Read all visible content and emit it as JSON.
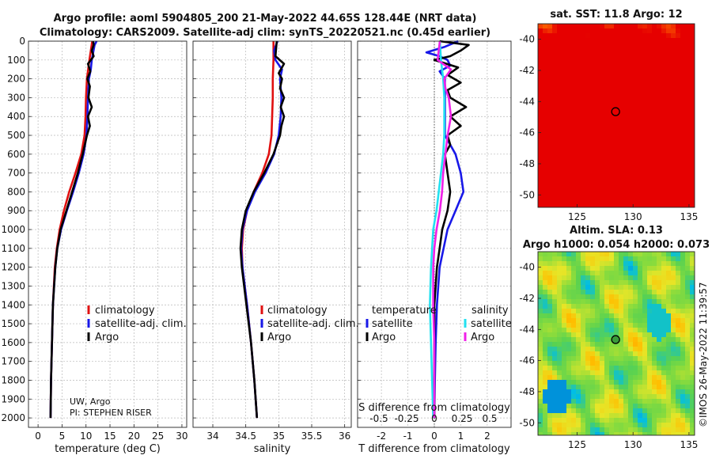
{
  "header": {
    "line1": "Argo profile: aoml 5904805_200 21-May-2022 44.65S 128.44E (NRT data)",
    "line2": "Climatology: CARS2009. Satellite-adj clim: synTS_20220521.nc (0.45d earlier)"
  },
  "colors": {
    "climatology": "#e01010",
    "satellite": "#1818e8",
    "argo": "#000000",
    "sal_sat": "#22e0f0",
    "sal_diff": "#f020e8"
  },
  "chart_data": [
    {
      "type": "line",
      "name": "temperature-profile",
      "xlabel": "temperature (deg C)",
      "ylabel": "depth",
      "xlim": [
        -2,
        31
      ],
      "ylim": [
        2050,
        0
      ],
      "xticks": [
        0,
        5,
        10,
        15,
        20,
        25,
        30
      ],
      "xtick_labels": [
        "0",
        "5",
        "10",
        "15",
        "20",
        "25",
        "30"
      ],
      "yticks": [
        0,
        100,
        200,
        300,
        400,
        500,
        600,
        700,
        800,
        900,
        1000,
        1100,
        1200,
        1300,
        1400,
        1500,
        1600,
        1700,
        1800,
        1900,
        2000
      ],
      "ytick_labels": [
        "0",
        "100",
        "200",
        "300",
        "400",
        "500",
        "600",
        "700",
        "800",
        "900",
        "1000",
        "1100",
        "1200",
        "1300",
        "1400",
        "1500",
        "1600",
        "1700",
        "1800",
        "1900",
        "2000"
      ],
      "legend": [
        "climatology",
        "satellite-adj. clim.",
        "Argo"
      ],
      "note": [
        "UW, Argo",
        "PI: STEPHEN RISER"
      ],
      "series": [
        {
          "name": "climatology",
          "depth": [
            0,
            50,
            100,
            200,
            300,
            400,
            500,
            600,
            700,
            800,
            900,
            1000,
            1100,
            1200,
            1400,
            1600,
            1800,
            2000
          ],
          "values": [
            11.3,
            11.0,
            10.7,
            10.2,
            10.0,
            9.9,
            9.7,
            9.0,
            7.8,
            6.5,
            5.4,
            4.5,
            3.9,
            3.5,
            3.1,
            2.9,
            2.7,
            2.6
          ]
        },
        {
          "name": "satellite-adj. clim.",
          "depth": [
            0,
            20,
            60,
            100,
            150,
            200,
            300,
            400,
            500,
            600,
            700,
            800,
            900,
            1000,
            1100,
            1200,
            1400,
            1600,
            1800,
            2000
          ],
          "values": [
            12.2,
            11.8,
            11.5,
            11.2,
            11.0,
            10.6,
            10.4,
            10.3,
            10.1,
            9.5,
            8.5,
            7.3,
            6.0,
            4.8,
            4.0,
            3.6,
            3.1,
            2.9,
            2.7,
            2.6
          ]
        },
        {
          "name": "Argo",
          "depth": [
            0,
            20,
            50,
            80,
            120,
            160,
            200,
            240,
            300,
            350,
            400,
            450,
            500,
            600,
            700,
            800,
            900,
            1000,
            1100,
            1200,
            1400,
            1600,
            1800,
            2000
          ],
          "values": [
            11.5,
            11.6,
            11.2,
            11.6,
            10.4,
            10.9,
            10.3,
            10.8,
            10.5,
            11.2,
            10.4,
            10.8,
            10.2,
            9.3,
            8.3,
            7.1,
            5.9,
            4.7,
            4.0,
            3.6,
            3.1,
            2.9,
            2.7,
            2.6
          ]
        }
      ]
    },
    {
      "type": "line",
      "name": "salinity-profile",
      "xlabel": "salinity",
      "xlim": [
        33.7,
        36.1
      ],
      "ylim": [
        2050,
        0
      ],
      "xticks": [
        34,
        34.5,
        35,
        35.5,
        36
      ],
      "xtick_labels": [
        "34",
        "34.5",
        "35",
        "35.5",
        "36"
      ],
      "legend": [
        "climatology",
        "satellite-adj. clim.",
        "Argo"
      ],
      "series": [
        {
          "name": "climatology",
          "depth": [
            0,
            100,
            200,
            300,
            400,
            500,
            600,
            700,
            800,
            900,
            1000,
            1100,
            1200,
            1400,
            1600,
            1800,
            2000
          ],
          "values": [
            34.92,
            34.92,
            34.91,
            34.91,
            34.9,
            34.89,
            34.85,
            34.75,
            34.62,
            34.52,
            34.46,
            34.44,
            34.45,
            34.52,
            34.58,
            34.63,
            34.67
          ]
        },
        {
          "name": "satellite-adj. clim.",
          "depth": [
            0,
            50,
            100,
            150,
            200,
            300,
            400,
            500,
            600,
            700,
            800,
            900,
            1000,
            1100,
            1200,
            1400,
            1600,
            1800,
            2000
          ],
          "values": [
            34.98,
            34.93,
            34.95,
            35.05,
            35.02,
            35.04,
            35.03,
            35.0,
            34.93,
            34.8,
            34.64,
            34.52,
            34.45,
            34.43,
            34.45,
            34.52,
            34.58,
            34.63,
            34.67
          ]
        },
        {
          "name": "Argo",
          "depth": [
            0,
            40,
            80,
            120,
            170,
            200,
            250,
            300,
            350,
            400,
            450,
            500,
            600,
            700,
            800,
            900,
            1000,
            1100,
            1200,
            1400,
            1600,
            1800,
            2000
          ],
          "values": [
            34.97,
            34.96,
            34.95,
            35.08,
            35.0,
            35.05,
            35.02,
            35.08,
            35.03,
            35.08,
            35.04,
            35.02,
            34.92,
            34.78,
            34.62,
            34.5,
            34.44,
            34.42,
            34.44,
            34.51,
            34.58,
            34.63,
            34.67
          ]
        }
      ]
    },
    {
      "type": "line",
      "name": "difference-profile",
      "xlabel": "T difference from climatology",
      "xlabel_top": "S difference from climatology",
      "xlim": [
        -2.9,
        2.9
      ],
      "ylim": [
        2050,
        0
      ],
      "xticks": [
        -2,
        -1,
        0,
        1,
        2
      ],
      "xtick_labels": [
        "-2",
        "-1",
        "0",
        "1",
        "2"
      ],
      "top_ticks": [
        -0.5,
        -0.25,
        0,
        0.25,
        0.5
      ],
      "top_tick_labels": [
        "-0.5",
        "-0.25",
        "0",
        "0.25",
        "0.5"
      ],
      "legend_temperature": {
        "title": "temperature",
        "items": [
          "satellite",
          "Argo"
        ]
      },
      "legend_salinity": {
        "title": "salinity",
        "items": [
          "satellite",
          "Argo"
        ]
      },
      "series": [
        {
          "name": "T satellite",
          "depth": [
            0,
            30,
            60,
            80,
            100,
            130,
            160,
            200,
            300,
            400,
            500,
            600,
            700,
            800,
            900,
            1000,
            1100,
            1200,
            1400,
            1600,
            1800,
            2000
          ],
          "values": [
            0.9,
            0.4,
            -0.3,
            0.2,
            0.5,
            0.6,
            0.2,
            0.4,
            0.4,
            0.4,
            0.4,
            0.8,
            1.0,
            1.1,
            0.8,
            0.5,
            0.35,
            0.2,
            0.1,
            0.05,
            0.02,
            0.0
          ]
        },
        {
          "name": "T Argo",
          "depth": [
            0,
            20,
            50,
            80,
            100,
            140,
            180,
            220,
            260,
            300,
            350,
            400,
            450,
            500,
            550,
            600,
            700,
            800,
            900,
            1000,
            1100,
            1200,
            1400,
            1600,
            1800,
            2000
          ],
          "values": [
            0.2,
            1.3,
            1.0,
            0.6,
            0.0,
            0.9,
            0.5,
            1.0,
            0.5,
            0.6,
            1.2,
            0.6,
            1.0,
            0.5,
            0.6,
            0.4,
            0.5,
            0.6,
            0.5,
            0.3,
            0.2,
            0.1,
            0.0,
            0.0,
            0.0,
            0.0
          ]
        },
        {
          "name": "S satellite",
          "depth": [
            0,
            100,
            200,
            300,
            400,
            500,
            600,
            700,
            800,
            900,
            1000,
            1100,
            1200,
            1400,
            1600,
            1800,
            2000
          ],
          "values": [
            0.05,
            0.06,
            0.08,
            0.09,
            0.09,
            0.09,
            0.08,
            0.06,
            0.04,
            0.02,
            -0.01,
            -0.02,
            -0.03,
            -0.04,
            -0.03,
            -0.02,
            -0.01
          ]
        },
        {
          "name": "S Argo",
          "depth": [
            0,
            50,
            100,
            150,
            200,
            250,
            300,
            400,
            500,
            600,
            700,
            800,
            900,
            1000,
            1100,
            1200,
            1400,
            1600,
            1800,
            2000
          ],
          "values": [
            0.05,
            0.04,
            0.03,
            0.15,
            0.09,
            0.1,
            0.13,
            0.15,
            0.12,
            0.1,
            0.08,
            0.07,
            0.05,
            0.02,
            0.0,
            -0.01,
            -0.01,
            0.0,
            0.0,
            0.0
          ]
        }
      ]
    },
    {
      "type": "heatmap",
      "name": "sst-map",
      "title": "sat. SST: 11.8 Argo: 12",
      "xlim": [
        121.5,
        135.5
      ],
      "ylim": [
        -50.8,
        -39.0
      ],
      "xticks": [
        125,
        130,
        135
      ],
      "xtick_labels": [
        "125",
        "130",
        "135"
      ],
      "yticks": [
        -40,
        -42,
        -44,
        -46,
        -48,
        -50
      ],
      "ytick_labels": [
        "-40",
        "-42",
        "-44",
        "-46",
        "-48",
        "-50"
      ],
      "argo_position": [
        128.44,
        -44.65
      ]
    },
    {
      "type": "heatmap",
      "name": "sla-map",
      "title_line1": "Altim. SLA: 0.13",
      "title_line2": "Argo h1000: 0.054 h2000: 0.073",
      "xlim": [
        121.5,
        135.5
      ],
      "ylim": [
        -50.8,
        -39.0
      ],
      "xticks": [
        125,
        130,
        135
      ],
      "xtick_labels": [
        "125",
        "130",
        "135"
      ],
      "yticks": [
        -40,
        -42,
        -44,
        -46,
        -48,
        -50
      ],
      "ytick_labels": [
        "-40",
        "-42",
        "-44",
        "-46",
        "-48",
        "-50"
      ],
      "argo_position": [
        128.44,
        -44.65
      ]
    }
  ],
  "footer": {
    "stamp": "©IMOS 26-May-2022 11:39:57"
  }
}
